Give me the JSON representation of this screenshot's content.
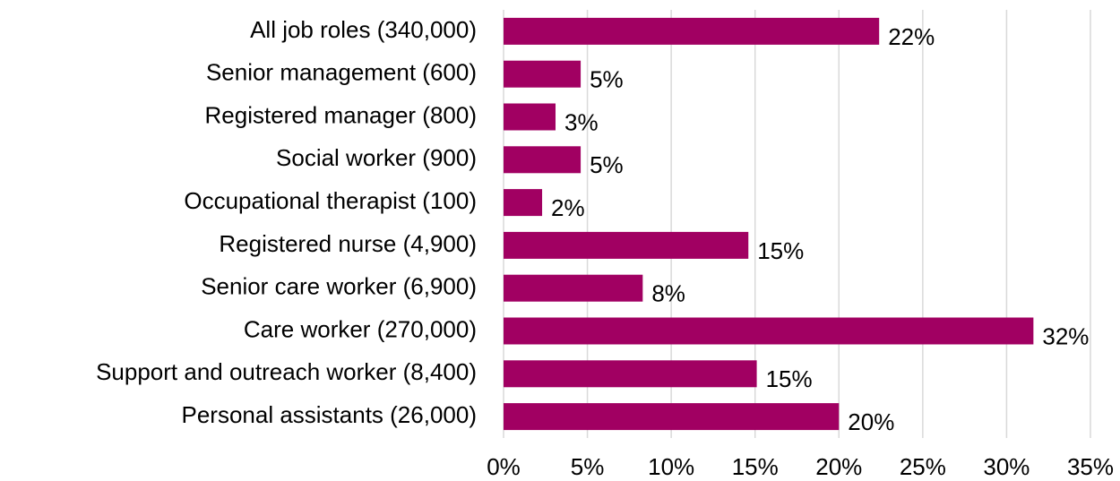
{
  "chart_data": {
    "type": "hbar",
    "categories": [
      "All job roles (340,000)",
      "Senior management (600)",
      "Registered manager (800)",
      "Social worker (900)",
      "Occupational therapist (100)",
      "Registered nurse (4,900)",
      "Senior care worker (6,900)",
      "Care worker (270,000)",
      "Support and outreach worker (8,400)",
      "Personal assistants (26,000)"
    ],
    "values": [
      22.4,
      4.6,
      3.1,
      4.6,
      2.3,
      14.6,
      8.3,
      31.6,
      15.1,
      20.0
    ],
    "value_labels": [
      "22%",
      "5%",
      "3%",
      "5%",
      "2%",
      "15%",
      "8%",
      "32%",
      "15%",
      "20%"
    ],
    "color": "#a10062",
    "xlim": [
      0,
      35
    ],
    "xticks": [
      {
        "value": 0,
        "label": "0%"
      },
      {
        "value": 5,
        "label": "5%"
      },
      {
        "value": 10,
        "label": "10%"
      },
      {
        "value": 15,
        "label": "15%"
      },
      {
        "value": 20,
        "label": "20%"
      },
      {
        "value": 25,
        "label": "25%"
      },
      {
        "value": 30,
        "label": "30%"
      },
      {
        "value": 35,
        "label": "35%"
      }
    ],
    "grid": true
  }
}
